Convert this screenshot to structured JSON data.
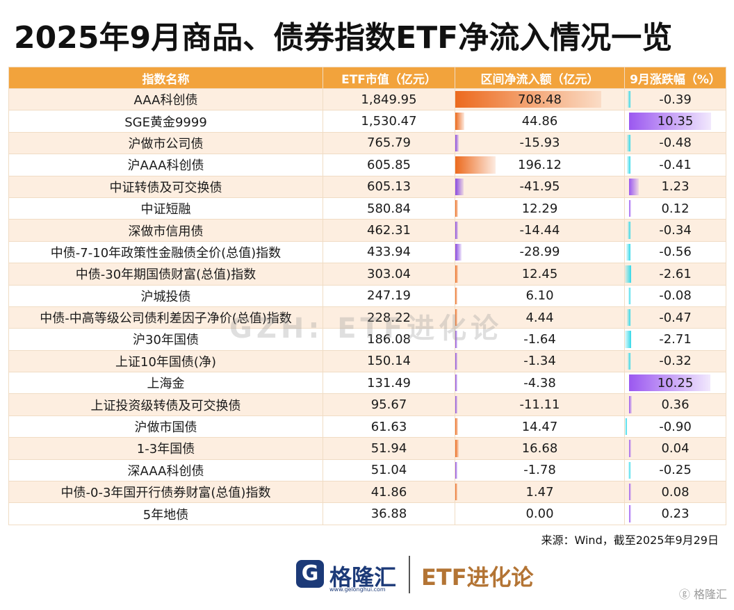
{
  "title": "2025年9月商品、债券指数ETF净流入情况一览",
  "source": "来源：Wind，截至2025年9月29日",
  "logo": {
    "name": "格隆汇",
    "url": "www.gelonghui.com"
  },
  "brand": "ETF进化论",
  "watermark": "GZH: ETF进化论",
  "corner_watermark": "ⓖ 格隆汇",
  "colors": {
    "header": "#f2a33c",
    "row_alt": "#fdeee0",
    "inflow_positive": "#ec6a1e",
    "inflow_negative": "#8a4be0",
    "change_positive": "#9b58f0",
    "change_negative": "#33d8e8"
  },
  "chart_data": {
    "type": "table",
    "columns": [
      "指数名称",
      "ETF市值（亿元）",
      "区间净流入额（亿元）",
      "9月涨跌幅（%）"
    ],
    "rows": [
      {
        "name": "AAA科创债",
        "market_value": "1,849.95",
        "net_inflow": 708.48,
        "change": -0.39
      },
      {
        "name": "SGE黄金9999",
        "market_value": "1,530.47",
        "net_inflow": 44.86,
        "change": 10.35
      },
      {
        "name": "沪做市公司债",
        "market_value": "765.79",
        "net_inflow": -15.93,
        "change": -0.48
      },
      {
        "name": "沪AAA科创债",
        "market_value": "605.85",
        "net_inflow": 196.12,
        "change": -0.41
      },
      {
        "name": "中证转债及可交换债",
        "market_value": "605.13",
        "net_inflow": -41.95,
        "change": 1.23
      },
      {
        "name": "中证短融",
        "market_value": "580.84",
        "net_inflow": 12.29,
        "change": 0.12
      },
      {
        "name": "深做市信用债",
        "market_value": "462.31",
        "net_inflow": -14.44,
        "change": -0.34
      },
      {
        "name": "中债-7-10年政策性金融债全价(总值)指数",
        "market_value": "433.94",
        "net_inflow": -28.99,
        "change": -0.56
      },
      {
        "name": "中债-30年期国债财富(总值)指数",
        "market_value": "303.04",
        "net_inflow": 12.45,
        "change": -2.61
      },
      {
        "name": "沪城投债",
        "market_value": "247.19",
        "net_inflow": 6.1,
        "change": -0.08
      },
      {
        "name": "中债-中高等级公司债利差因子净价(总值)指数",
        "market_value": "228.22",
        "net_inflow": 4.44,
        "change": -0.47
      },
      {
        "name": "沪30年国债",
        "market_value": "186.08",
        "net_inflow": -1.64,
        "change": -2.71
      },
      {
        "name": "上证10年国债(净)",
        "market_value": "150.14",
        "net_inflow": -1.34,
        "change": -0.32
      },
      {
        "name": "上海金",
        "market_value": "131.49",
        "net_inflow": -4.38,
        "change": 10.25
      },
      {
        "name": "上证投资级转债及可交换债",
        "market_value": "95.67",
        "net_inflow": -11.11,
        "change": 0.36
      },
      {
        "name": "沪做市国债",
        "market_value": "61.63",
        "net_inflow": 14.47,
        "change": -0.9
      },
      {
        "name": "1-3年国债",
        "market_value": "51.94",
        "net_inflow": 16.68,
        "change": 0.04
      },
      {
        "name": "深AAA科创债",
        "market_value": "51.04",
        "net_inflow": -1.78,
        "change": -0.25
      },
      {
        "name": "中债-0-3年国开行债券财富(总值)指数",
        "market_value": "41.86",
        "net_inflow": 1.47,
        "change": 0.08
      },
      {
        "name": "5年地债",
        "market_value": "36.88",
        "net_inflow": 0.0,
        "change": 0.23
      }
    ]
  }
}
